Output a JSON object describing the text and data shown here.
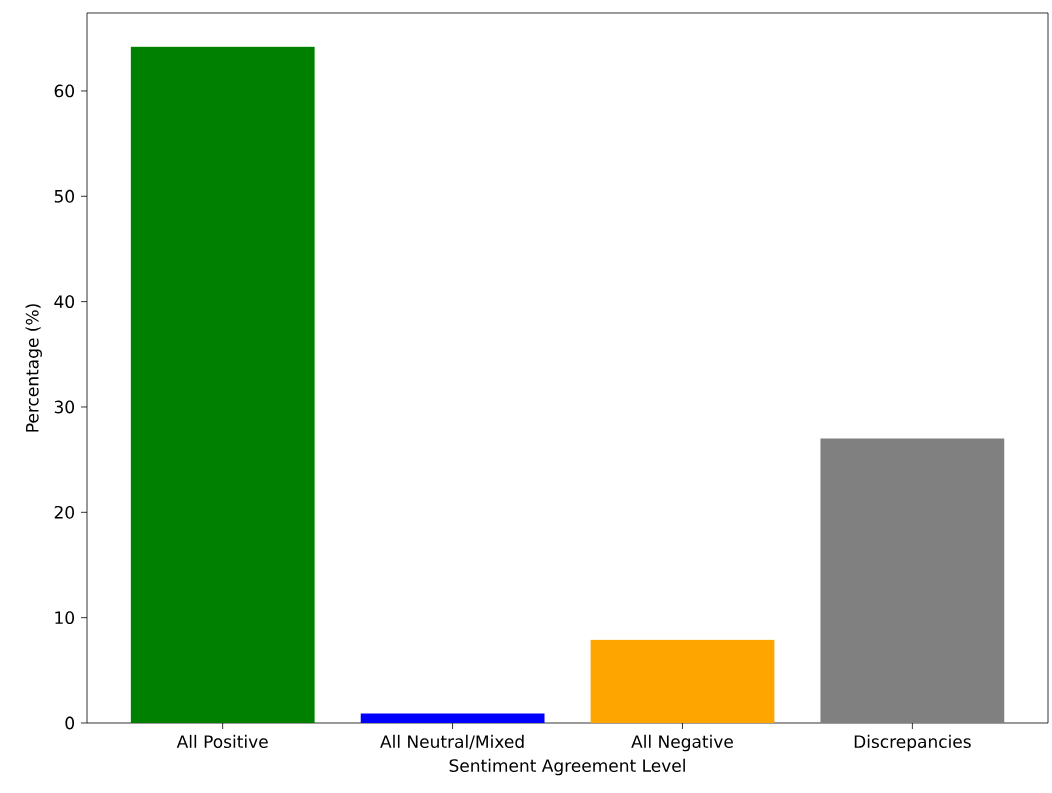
{
  "chart_data": {
    "type": "bar",
    "xlabel": "Sentiment Agreement Level",
    "ylabel": "Percentage (%)",
    "categories": [
      "All Positive",
      "All Neutral/Mixed",
      "All Negative",
      "Discrepancies"
    ],
    "values": [
      64.2,
      0.9,
      7.9,
      27.0
    ],
    "colors": [
      "#008000",
      "#0000ff",
      "#ffa500",
      "#808080"
    ],
    "ylim": [
      0,
      67.4
    ],
    "yticks": [
      0,
      10,
      20,
      30,
      40,
      50,
      60
    ],
    "grid": false
  }
}
